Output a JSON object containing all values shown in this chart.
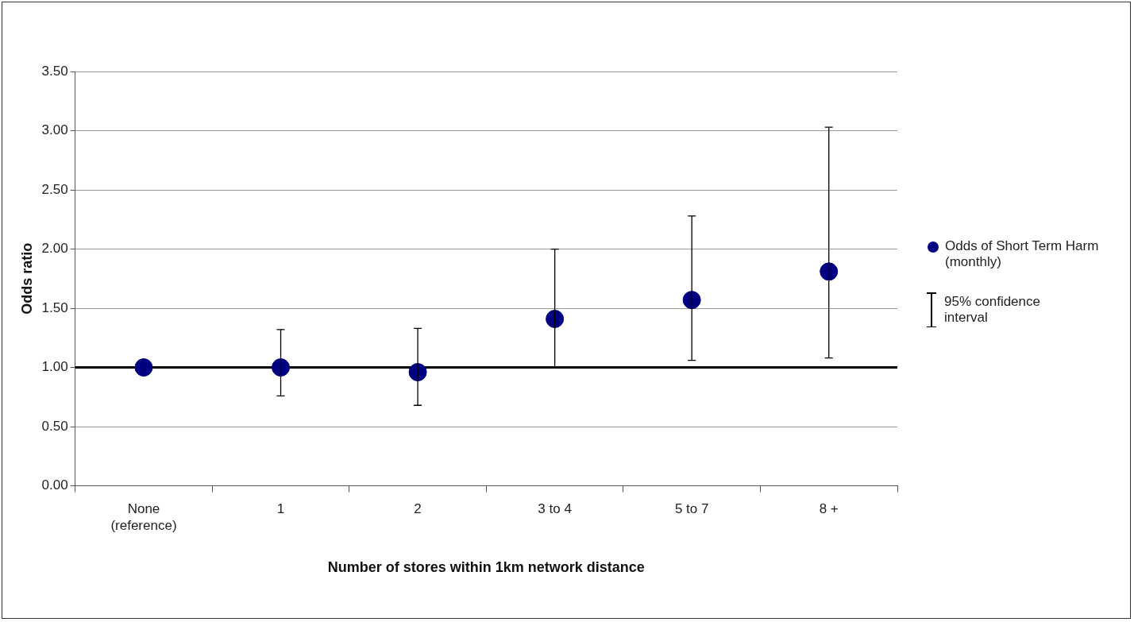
{
  "chart_data": {
    "type": "scatter",
    "xlabel": "Number of stores within 1km network distance",
    "ylabel": "Odds ratio",
    "categories": [
      "None\n(reference)",
      "1",
      "2",
      "3 to 4",
      "5 to 7",
      "8 +"
    ],
    "series": [
      {
        "name": "Odds of Short Term Harm (monthly)",
        "color": "#000080",
        "values": [
          1.0,
          1.0,
          0.96,
          1.41,
          1.57,
          1.81
        ],
        "errors": [
          null,
          [
            0.76,
            1.32
          ],
          [
            0.68,
            1.33
          ],
          [
            1.0,
            2.0
          ],
          [
            1.06,
            2.28
          ],
          [
            1.08,
            3.03
          ]
        ]
      }
    ],
    "ylim": [
      0,
      3.5
    ],
    "yticks": [
      {
        "value": 0,
        "label": "0.00"
      },
      {
        "value": 0.5,
        "label": "0.50"
      },
      {
        "value": 1,
        "label": "1.00"
      },
      {
        "value": 1.5,
        "label": "1.50"
      },
      {
        "value": 2,
        "label": "2.00"
      },
      {
        "value": 2.5,
        "label": "2.50"
      },
      {
        "value": 3,
        "label": "3.00"
      },
      {
        "value": 3.5,
        "label": "3.50"
      }
    ],
    "grid": "y",
    "legend": "right",
    "marker": "circle",
    "ref_lines": [
      {
        "axis": "y",
        "value": 1,
        "color": "#000000"
      }
    ],
    "annotations": [
      "95% confidence interval"
    ]
  }
}
